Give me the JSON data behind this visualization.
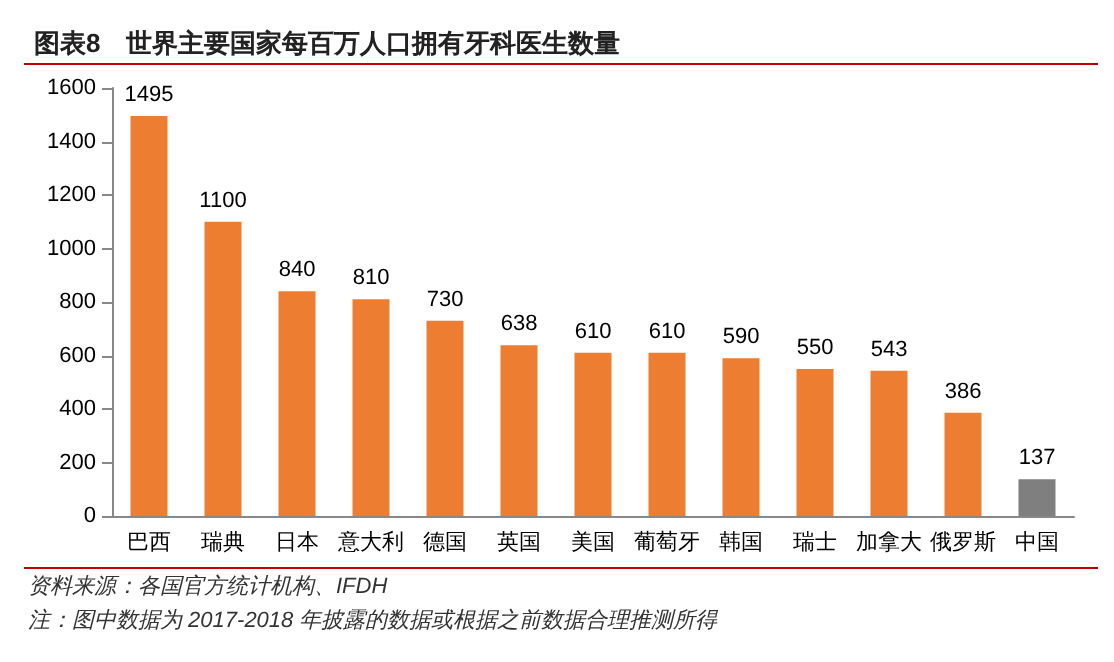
{
  "chart_data": {
    "type": "bar",
    "title": "图表8　世界主要国家每百万人口拥有牙科医生数量",
    "categories": [
      "巴西",
      "瑞典",
      "日本",
      "意大利",
      "德国",
      "英国",
      "美国",
      "葡萄牙",
      "韩国",
      "瑞士",
      "加拿大",
      "俄罗斯",
      "中国"
    ],
    "values": [
      1495,
      1100,
      840,
      810,
      730,
      638,
      610,
      610,
      590,
      550,
      543,
      386,
      137
    ],
    "colors": [
      "#ed7d31",
      "#ed7d31",
      "#ed7d31",
      "#ed7d31",
      "#ed7d31",
      "#ed7d31",
      "#ed7d31",
      "#ed7d31",
      "#ed7d31",
      "#ed7d31",
      "#ed7d31",
      "#ed7d31",
      "#7f7f7f"
    ],
    "ylim": [
      0,
      1600
    ],
    "yticks": [
      0,
      200,
      400,
      600,
      800,
      1000,
      1200,
      1400,
      1600
    ],
    "data_labels": true,
    "grid": false,
    "annotations": [
      "资料来源：各国官方统计机构、IFDH",
      "注：图中数据为 2017-2018 年披露的数据或根据之前数据合理推测所得"
    ]
  }
}
